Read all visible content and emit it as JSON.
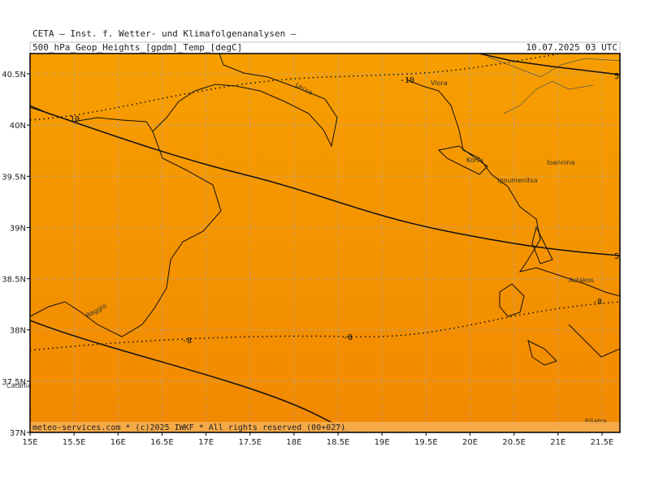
{
  "header": {
    "title": "CETA — Inst. f. Wetter- und Klimafolgenanalysen —",
    "product": "500_hPa_Geop_Heights_[gpdm]_Temp_[degC]",
    "valid_time": "10.07.2025 03 UTC"
  },
  "map": {
    "lon_labels": [
      "15E",
      "15.5E",
      "16E",
      "16.5E",
      "17E",
      "17.5E",
      "18E",
      "18.5E",
      "19E",
      "19.5E",
      "20E",
      "20.5E",
      "21E",
      "21.5E"
    ],
    "lat_labels": [
      "40.5N",
      "40N",
      "39.5N",
      "39N",
      "38.5N",
      "38N",
      "37.5N",
      "37N"
    ],
    "places": [
      "Lecce",
      "Vlora",
      "Korfu",
      "Igoumenitsa",
      "Ioannina",
      "Astakos",
      "Reggio",
      "Catania",
      "Filiatra"
    ],
    "contour_labels": [
      "-10",
      "-10",
      "-8",
      "-8",
      "-8",
      "5",
      "5"
    ]
  },
  "footer": {
    "credit": "meteo-services.com * (c)2025 IWKF * All rights reserved (00+027)"
  }
}
